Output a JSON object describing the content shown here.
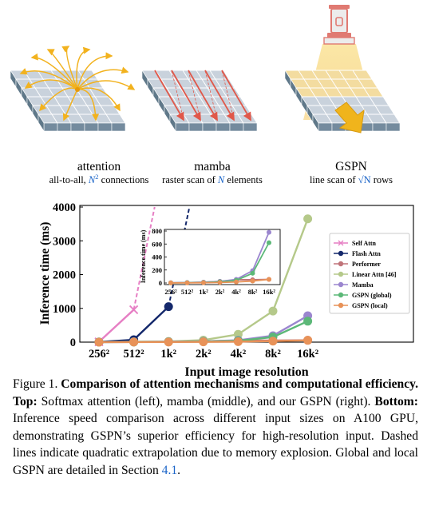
{
  "panels": [
    {
      "name": "attention",
      "subtitle_pre": "all-to-all, ",
      "subtitle_math": "N",
      "subtitle_sup": "2",
      "subtitle_post": " connections"
    },
    {
      "name": "mamba",
      "subtitle_pre": "raster scan of ",
      "subtitle_math": "N",
      "subtitle_sup": "",
      "subtitle_post": " elements"
    },
    {
      "name": "GSPN",
      "subtitle_pre": "line scan of ",
      "subtitle_math": "√N",
      "subtitle_sup": "",
      "subtitle_post": " rows"
    }
  ],
  "chart_data": [
    {
      "type": "line",
      "xlabel": "Input image resolution",
      "ylabel": "Inference time (ms)",
      "categories": [
        "256²",
        "512²",
        "1k²",
        "2k²",
        "4k²",
        "8k²",
        "16k²"
      ],
      "ylim": [
        0,
        4000
      ],
      "yticks": [
        0,
        1000,
        2000,
        3000,
        4000
      ],
      "legend_position": "right",
      "series": [
        {
          "name": "Self Attn",
          "color": "#e67fc4",
          "marker": "x",
          "values": [
            8,
            960,
            null,
            null,
            null,
            null,
            null
          ],
          "extrapolation": [
            [
              1,
              960
            ],
            [
              1.5,
              3500
            ],
            [
              1.6,
              4000
            ]
          ]
        },
        {
          "name": "Flash Attn",
          "color": "#14286b",
          "marker": "o",
          "values": [
            4,
            70,
            1050,
            null,
            null,
            null,
            null
          ],
          "extrapolation": [
            [
              2,
              1050
            ],
            [
              2.6,
              4000
            ]
          ]
        },
        {
          "name": "Performer",
          "color": "#c0747a",
          "marker": "o",
          "values": [
            3,
            6,
            12,
            25,
            50,
            50,
            55
          ]
        },
        {
          "name": "Linear Attn [46]",
          "color": "#b5c98a",
          "marker": "o",
          "values": [
            5,
            10,
            20,
            60,
            230,
            920,
            3650
          ]
        },
        {
          "name": "Mamba",
          "color": "#9b86cf",
          "marker": "o",
          "values": [
            3,
            6,
            12,
            25,
            55,
            190,
            780
          ]
        },
        {
          "name": "GSPN (global)",
          "color": "#5cb878",
          "marker": "o",
          "values": [
            2,
            4,
            8,
            18,
            40,
            150,
            620
          ]
        },
        {
          "name": "GSPN (local)",
          "color": "#e89258",
          "marker": "o",
          "values": [
            1,
            2,
            4,
            8,
            15,
            30,
            55
          ]
        }
      ]
    },
    {
      "type": "line",
      "ylabel": "Inference time (ms)",
      "categories": [
        "256²",
        "512²",
        "1k²",
        "2k²",
        "4k²",
        "8k²",
        "16k²"
      ],
      "ylim": [
        0,
        800
      ],
      "yticks": [
        0,
        200,
        400,
        600,
        800
      ],
      "series": [
        {
          "name": "Performer",
          "values": [
            3,
            6,
            12,
            25,
            50,
            50,
            55
          ]
        },
        {
          "name": "Mamba",
          "values": [
            3,
            6,
            12,
            25,
            55,
            190,
            780
          ]
        },
        {
          "name": "GSPN (global)",
          "values": [
            2,
            4,
            8,
            18,
            40,
            150,
            620
          ]
        },
        {
          "name": "GSPN (local)",
          "values": [
            1,
            2,
            4,
            8,
            15,
            30,
            55
          ]
        }
      ]
    }
  ],
  "caption": {
    "label": "Figure 1. ",
    "bold": "Comparison of attention mechanisms and computational efficiency. Top:",
    "t1": " Softmax attention (left), mamba (middle), and our GSPN (right). ",
    "bold2": "Bottom:",
    "t2": " Inference speed comparison across different input sizes on A100 GPU, demonstrating GSPN’s superior efficiency for high-resolution input. Dashed lines indicate quadratic extrapolation due to memory explosion. Global and local GSPN are detailed in Section ",
    "ref": "4.1",
    "t3": "."
  },
  "colors": {
    "accent": "#1a64c8",
    "grid_top": "#c9d2dc",
    "grid_side": "#748b9e",
    "arrow_attn": "#f2b21e",
    "arrow_mamba": "#e0584a"
  }
}
